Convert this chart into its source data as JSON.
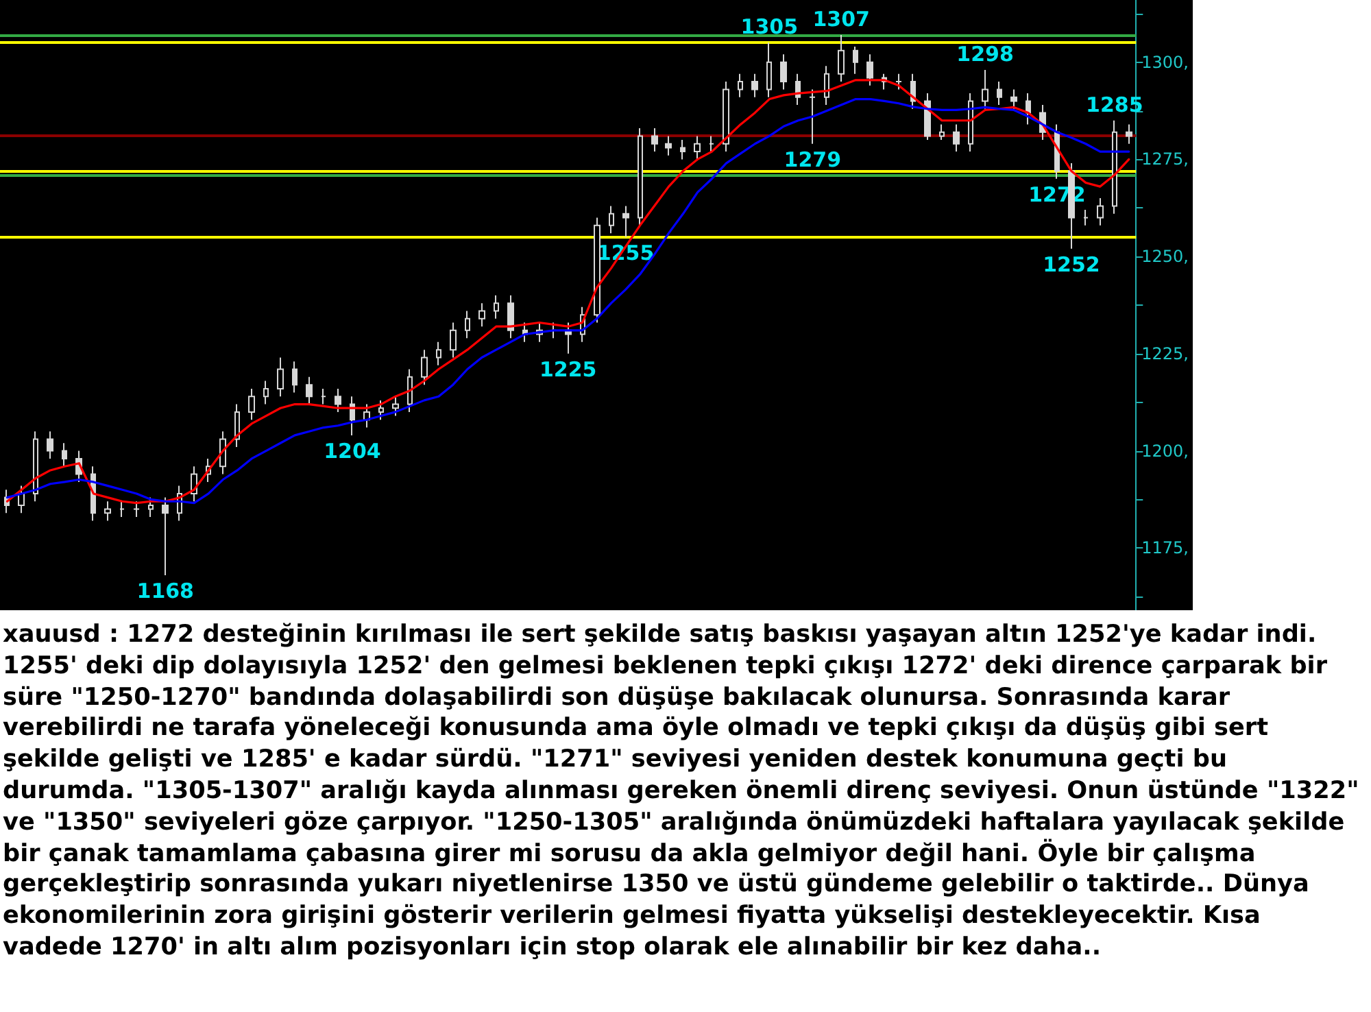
{
  "chart_data": {
    "type": "candlestick",
    "tick_labels": "y",
    "grid": false,
    "marker": "none",
    "categories": [
      null,
      null,
      null,
      null,
      null,
      null,
      null,
      null,
      null,
      null,
      null,
      null,
      null,
      null,
      null,
      null,
      null,
      null,
      null,
      null,
      null,
      null,
      null,
      null,
      null,
      null,
      null,
      null,
      null,
      null,
      null,
      null,
      null,
      null,
      null,
      null,
      null,
      null,
      null,
      null,
      null,
      null,
      null,
      null,
      null,
      null,
      null,
      null,
      null,
      null,
      null,
      null,
      null,
      null,
      null,
      null,
      null,
      null,
      null,
      null,
      null,
      null,
      null,
      null,
      null,
      null,
      null,
      null,
      null,
      null,
      null,
      null,
      null,
      null,
      null,
      null,
      null,
      null,
      null
    ],
    "ylim": [
      1159,
      1316
    ],
    "yticks": [
      {
        "value": 1162.5,
        "label": null
      },
      {
        "value": 1175,
        "label": "1175,"
      },
      {
        "value": 1187.5,
        "label": null
      },
      {
        "value": 1200,
        "label": "1200,"
      },
      {
        "value": 1212.5,
        "label": null
      },
      {
        "value": 1225,
        "label": "1225,"
      },
      {
        "value": 1237.5,
        "label": null
      },
      {
        "value": 1250,
        "label": "1250,"
      },
      {
        "value": 1262.5,
        "label": null
      },
      {
        "value": 1275,
        "label": "1275,"
      },
      {
        "value": 1287.5,
        "label": null
      },
      {
        "value": 1300,
        "label": "1300,"
      },
      {
        "value": 1312.5,
        "label": null
      }
    ],
    "series": [
      {
        "color": "#d8d8d8",
        "ohlc": [
          [
            1188,
            1190,
            1184,
            1186
          ],
          [
            1186,
            1191,
            1184,
            1189
          ],
          [
            1189,
            1205,
            1187,
            1203
          ],
          [
            1203,
            1205,
            1198,
            1200
          ],
          [
            1200,
            1202,
            1196,
            1198
          ],
          [
            1198,
            1200,
            1192,
            1194
          ],
          [
            1194,
            1196,
            1182,
            1184
          ],
          [
            1184,
            1187,
            1182,
            1185
          ],
          [
            1185,
            1187,
            1183,
            1185
          ],
          [
            1185,
            1187,
            1183,
            1185
          ],
          [
            1185,
            1188,
            1183,
            1186
          ],
          [
            1186,
            1188,
            1168,
            1184
          ],
          [
            1184,
            1191,
            1182,
            1189
          ],
          [
            1189,
            1196,
            1187,
            1194
          ],
          [
            1194,
            1198,
            1192,
            1196
          ],
          [
            1196,
            1205,
            1194,
            1203
          ],
          [
            1203,
            1212,
            1201,
            1210
          ],
          [
            1210,
            1216,
            1208,
            1214
          ],
          [
            1214,
            1218,
            1212,
            1216
          ],
          [
            1216,
            1224,
            1214,
            1221
          ],
          [
            1221,
            1223,
            1215,
            1217
          ],
          [
            1217,
            1219,
            1212,
            1214
          ],
          [
            1214,
            1216,
            1212,
            1214
          ],
          [
            1214,
            1216,
            1210,
            1212
          ],
          [
            1212,
            1214,
            1204,
            1208
          ],
          [
            1208,
            1212,
            1206,
            1210
          ],
          [
            1210,
            1213,
            1208,
            1211
          ],
          [
            1211,
            1214,
            1209,
            1212
          ],
          [
            1212,
            1221,
            1210,
            1219
          ],
          [
            1219,
            1226,
            1217,
            1224
          ],
          [
            1224,
            1228,
            1222,
            1226
          ],
          [
            1226,
            1233,
            1224,
            1231
          ],
          [
            1231,
            1236,
            1229,
            1234
          ],
          [
            1234,
            1238,
            1232,
            1236
          ],
          [
            1236,
            1240,
            1234,
            1238
          ],
          [
            1238,
            1240,
            1229,
            1231
          ],
          [
            1231,
            1233,
            1228,
            1230
          ],
          [
            1230,
            1233,
            1228,
            1231
          ],
          [
            1231,
            1233,
            1229,
            1231
          ],
          [
            1231,
            1233,
            1225,
            1230
          ],
          [
            1230,
            1237,
            1228,
            1235
          ],
          [
            1235,
            1260,
            1233,
            1258
          ],
          [
            1258,
            1263,
            1256,
            1261
          ],
          [
            1261,
            1263,
            1255,
            1260
          ],
          [
            1260,
            1283,
            1258,
            1281
          ],
          [
            1281,
            1283,
            1277,
            1279
          ],
          [
            1279,
            1281,
            1276,
            1278
          ],
          [
            1278,
            1280,
            1275,
            1277
          ],
          [
            1277,
            1281,
            1275,
            1279
          ],
          [
            1279,
            1281,
            1277,
            1279
          ],
          [
            1279,
            1295,
            1277,
            1293
          ],
          [
            1293,
            1297,
            1291,
            1295
          ],
          [
            1295,
            1297,
            1291,
            1293
          ],
          [
            1293,
            1305,
            1291,
            1300
          ],
          [
            1300,
            1302,
            1293,
            1295
          ],
          [
            1295,
            1297,
            1289,
            1291
          ],
          [
            1291,
            1293,
            1279,
            1291
          ],
          [
            1291,
            1299,
            1289,
            1297
          ],
          [
            1297,
            1307,
            1295,
            1303
          ],
          [
            1303,
            1304,
            1297,
            1300
          ],
          [
            1300,
            1302,
            1294,
            1296
          ],
          [
            1296,
            1297,
            1293,
            1295
          ],
          [
            1295,
            1297,
            1293,
            1295
          ],
          [
            1295,
            1297,
            1288,
            1290
          ],
          [
            1290,
            1292,
            1280,
            1281
          ],
          [
            1281,
            1284,
            1280,
            1282
          ],
          [
            1282,
            1284,
            1277,
            1279
          ],
          [
            1279,
            1292,
            1277,
            1290
          ],
          [
            1290,
            1298,
            1288,
            1293
          ],
          [
            1293,
            1295,
            1289,
            1291
          ],
          [
            1291,
            1293,
            1288,
            1290
          ],
          [
            1290,
            1292,
            1284,
            1287
          ],
          [
            1287,
            1289,
            1280,
            1282
          ],
          [
            1282,
            1284,
            1270,
            1272
          ],
          [
            1272,
            1274,
            1252,
            1260
          ],
          [
            1260,
            1262,
            1258,
            1260
          ],
          [
            1260,
            1265,
            1258,
            1263
          ],
          [
            1263,
            1285,
            1261,
            1282
          ],
          [
            1282,
            1284,
            1279,
            1281
          ]
        ]
      },
      {
        "type": "line",
        "color": "#ff0000",
        "values": [
          1187,
          1190,
          1193,
          1195,
          1196,
          1196.8,
          1189,
          1188,
          1187,
          1186.6,
          1187,
          1187,
          1188,
          1190,
          1195,
          1200,
          1204,
          1207,
          1209,
          1211,
          1212,
          1212,
          1211.5,
          1211,
          1211,
          1211,
          1212,
          1214,
          1215.5,
          1218,
          1221,
          1223.5,
          1226,
          1229,
          1232,
          1232,
          1232.5,
          1233,
          1232.5,
          1232,
          1233,
          1242,
          1247,
          1252.5,
          1258,
          1263,
          1268,
          1272,
          1275,
          1277,
          1280.5,
          1284,
          1287,
          1290.5,
          1291.5,
          1292,
          1292.3,
          1292.6,
          1294,
          1295.4,
          1295.4,
          1295.4,
          1294,
          1291,
          1288,
          1285,
          1285,
          1285,
          1287.7,
          1288,
          1288.4,
          1287,
          1284,
          1278,
          1272,
          1269,
          1268,
          1271,
          1275
        ]
      },
      {
        "type": "line",
        "color": "#0000ff",
        "values": [
          1188,
          1189,
          1190,
          1191.5,
          1192,
          1192.6,
          1192,
          1191,
          1190,
          1189,
          1187.5,
          1187,
          1187,
          1186.6,
          1189,
          1192.6,
          1195,
          1198,
          1200,
          1202,
          1204,
          1205,
          1206,
          1206.5,
          1207.4,
          1208,
          1209,
          1210,
          1211.5,
          1213,
          1214,
          1217,
          1221,
          1224,
          1226,
          1228,
          1230,
          1230.5,
          1231,
          1231,
          1231,
          1234,
          1238,
          1241.5,
          1245.4,
          1250.5,
          1256,
          1261,
          1266.5,
          1270,
          1274,
          1276.5,
          1279,
          1281,
          1283.5,
          1285,
          1286,
          1287.5,
          1289,
          1290.5,
          1290.5,
          1290,
          1289.4,
          1288.5,
          1288,
          1287.7,
          1287.7,
          1288,
          1288.4,
          1288,
          1287.7,
          1286,
          1284,
          1282,
          1280.6,
          1279,
          1277,
          1277,
          1277
        ]
      }
    ],
    "ref_lines": [
      {
        "axis": "y",
        "value": 1305,
        "color": "#ffff00"
      },
      {
        "axis": "y",
        "value": 1272,
        "color": "#ffff00"
      },
      {
        "axis": "y",
        "value": 1255,
        "color": "#ffff00"
      },
      {
        "axis": "y",
        "value": 1307,
        "color": "#33aa44"
      },
      {
        "axis": "y",
        "value": 1271,
        "color": "#33aa44"
      },
      {
        "axis": "y",
        "value": 1281,
        "color": "#8b0000"
      }
    ],
    "annotations": [
      {
        "text": "1168",
        "y": 1168
      },
      {
        "text": "1204",
        "y": 1204
      },
      {
        "text": "1225",
        "y": 1225
      },
      {
        "text": "1255",
        "y": 1255
      },
      {
        "text": "1305",
        "y": 1305
      },
      {
        "text": "1307",
        "y": 1307
      },
      {
        "text": "1279",
        "y": 1279
      },
      {
        "text": "1272",
        "y": 1272
      },
      {
        "text": "1298",
        "y": 1298
      },
      {
        "text": "1252",
        "y": 1252
      },
      {
        "text": "1285",
        "y": 1285
      },
      "xauusd : 1272 desteğinin kırılması ile sert şekilde satış baskısı yaşayan altın 1252'ye kadar indi. 1255' deki dip dolayısıyla 1252' den gelmesi beklenen tepki çıkışı 1272' deki dirence çarparak bir süre \"1250-1270\" bandında dolaşabilirdi son düşüşe bakılacak olunursa. Sonrasında karar verebilirdi ne tarafa yöneleceği konusunda ama öyle olmadı ve tepki çıkışı da düşüş gibi sert şekilde gelişti ve 1285' e kadar sürdü. \"1271\" seviyesi yeniden destek konumuna geçti bu durumda. \"1305-1307\" aralığı kayda alınması gereken önemli direnç seviyesi. Onun üstünde \"1322\" ve \"1350\" seviyeleri göze çarpıyor. \"1250-1305\" aralığında önümüzdeki haftalara yayılacak şekilde bir çanak tamamlama çabasına girer mi sorusu da akla gelmiyor değil hani. Öyle bir çalışma gerçekleştirip sonrasında yukarı niyetlenirse 1350 ve üstü gündeme gelebilir o taktirde.. Dünya ekonomilerinin zora girişini gösterir verilerin gelmesi fiyatta yükselişi destekleyecektir. Kısa vadede 1270' in altı alım pozisyonları için stop olarak ele alınabilir bir kez daha.."
    ]
  }
}
